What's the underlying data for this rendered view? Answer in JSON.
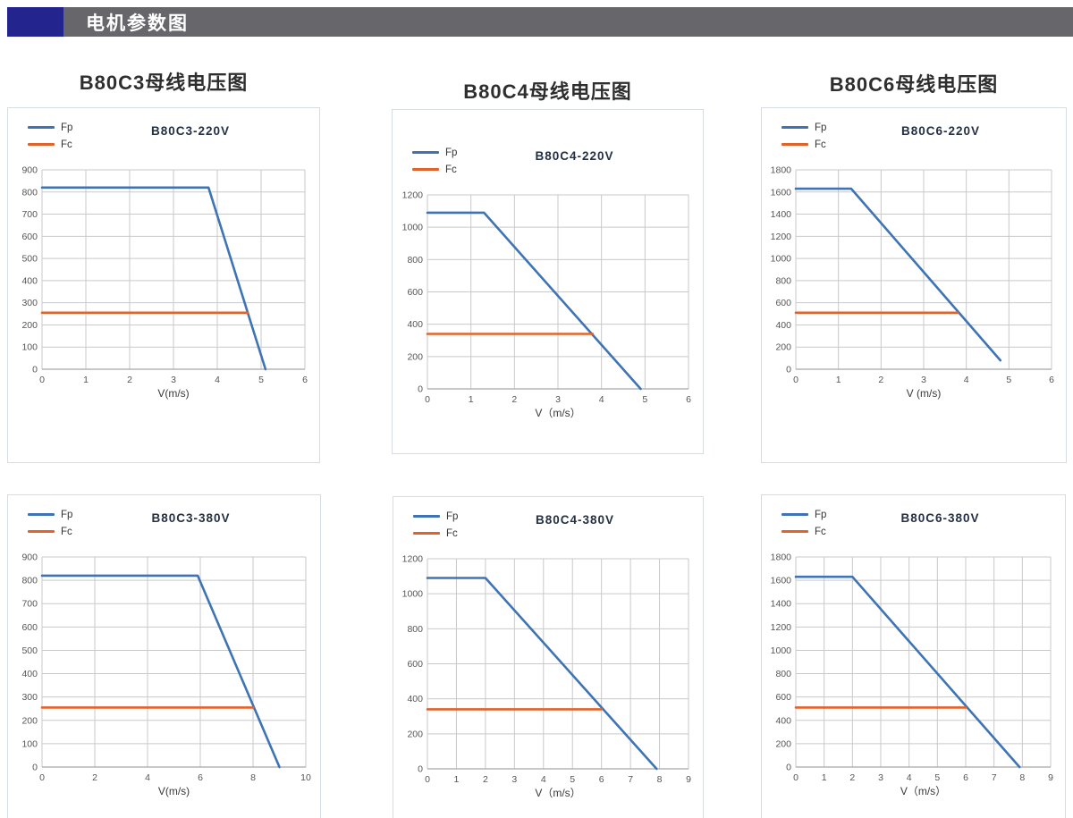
{
  "header": {
    "title": "电机参数图",
    "accent_color": "#24248f",
    "bar_color": "#66666b"
  },
  "column_titles": [
    "B80C3母线电压图",
    "B80C4母线电压图",
    "B80C6母线电压图"
  ],
  "colors": {
    "fp": "#3e74b5",
    "fc": "#e2632a",
    "grid": "#c9c9c9",
    "axis": "#a8a8a8"
  },
  "chart_data": [
    {
      "type": "line",
      "title": "B80C3-220V",
      "xlabel": "V(m/s)",
      "xlim": [
        0,
        6
      ],
      "xtick_step": 1,
      "ylim": [
        0,
        900
      ],
      "ytick_step": 100,
      "grid": true,
      "legend_position": "top-left",
      "series": [
        {
          "name": "Fp",
          "color": "#3e74b5",
          "points": [
            [
              0,
              820
            ],
            [
              3.8,
              820
            ],
            [
              5.1,
              0
            ]
          ]
        },
        {
          "name": "Fc",
          "color": "#e2632a",
          "points": [
            [
              0,
              255
            ],
            [
              4.7,
              255
            ]
          ]
        }
      ]
    },
    {
      "type": "line",
      "title": "B80C4-220V",
      "xlabel": "V（m/s）",
      "xlim": [
        0,
        6
      ],
      "xtick_step": 1,
      "ylim": [
        0,
        1200
      ],
      "ytick_step": 200,
      "grid": true,
      "legend_position": "top-left",
      "series": [
        {
          "name": "Fp",
          "color": "#3e74b5",
          "points": [
            [
              0,
              1090
            ],
            [
              1.3,
              1090
            ],
            [
              4.9,
              0
            ]
          ]
        },
        {
          "name": "Fc",
          "color": "#e2632a",
          "points": [
            [
              0,
              340
            ],
            [
              3.8,
              340
            ]
          ]
        }
      ]
    },
    {
      "type": "line",
      "title": "B80C6-220V",
      "xlabel": "V (m/s)",
      "xlim": [
        0,
        6
      ],
      "xtick_step": 1,
      "ylim": [
        0,
        1800
      ],
      "ytick_step": 200,
      "grid": true,
      "legend_position": "top-left",
      "series": [
        {
          "name": "Fp",
          "color": "#3e74b5",
          "points": [
            [
              0,
              1630
            ],
            [
              1.3,
              1630
            ],
            [
              4.8,
              80
            ]
          ]
        },
        {
          "name": "Fc",
          "color": "#e2632a",
          "points": [
            [
              0,
              510
            ],
            [
              3.8,
              510
            ]
          ]
        }
      ]
    },
    {
      "type": "line",
      "title": "B80C3-380V",
      "xlabel": "V(m/s)",
      "xlim": [
        0,
        10
      ],
      "xtick_step": 2,
      "ylim": [
        0,
        900
      ],
      "ytick_step": 100,
      "grid": true,
      "legend_position": "top-left",
      "series": [
        {
          "name": "Fp",
          "color": "#3e74b5",
          "points": [
            [
              0,
              820
            ],
            [
              5.9,
              820
            ],
            [
              9,
              0
            ]
          ]
        },
        {
          "name": "Fc",
          "color": "#e2632a",
          "points": [
            [
              0,
              255
            ],
            [
              8,
              255
            ]
          ]
        }
      ]
    },
    {
      "type": "line",
      "title": "B80C4-380V",
      "xlabel": "V（m/s）",
      "xlim": [
        0,
        9
      ],
      "xtick_step": 1,
      "ylim": [
        0,
        1200
      ],
      "ytick_step": 200,
      "grid": true,
      "legend_position": "top-left",
      "series": [
        {
          "name": "Fp",
          "color": "#3e74b5",
          "points": [
            [
              0,
              1090
            ],
            [
              2,
              1090
            ],
            [
              7.9,
              0
            ]
          ]
        },
        {
          "name": "Fc",
          "color": "#e2632a",
          "points": [
            [
              0,
              340
            ],
            [
              6,
              340
            ]
          ]
        }
      ]
    },
    {
      "type": "line",
      "title": "B80C6-380V",
      "xlabel": "V（m/s）",
      "xlim": [
        0,
        9
      ],
      "xtick_step": 1,
      "ylim": [
        0,
        1800
      ],
      "ytick_step": 200,
      "grid": true,
      "legend_position": "top-left",
      "series": [
        {
          "name": "Fp",
          "color": "#3e74b5",
          "points": [
            [
              0,
              1630
            ],
            [
              2,
              1630
            ],
            [
              7.9,
              0
            ]
          ]
        },
        {
          "name": "Fc",
          "color": "#e2632a",
          "points": [
            [
              0,
              510
            ],
            [
              6,
              510
            ]
          ]
        }
      ]
    }
  ]
}
